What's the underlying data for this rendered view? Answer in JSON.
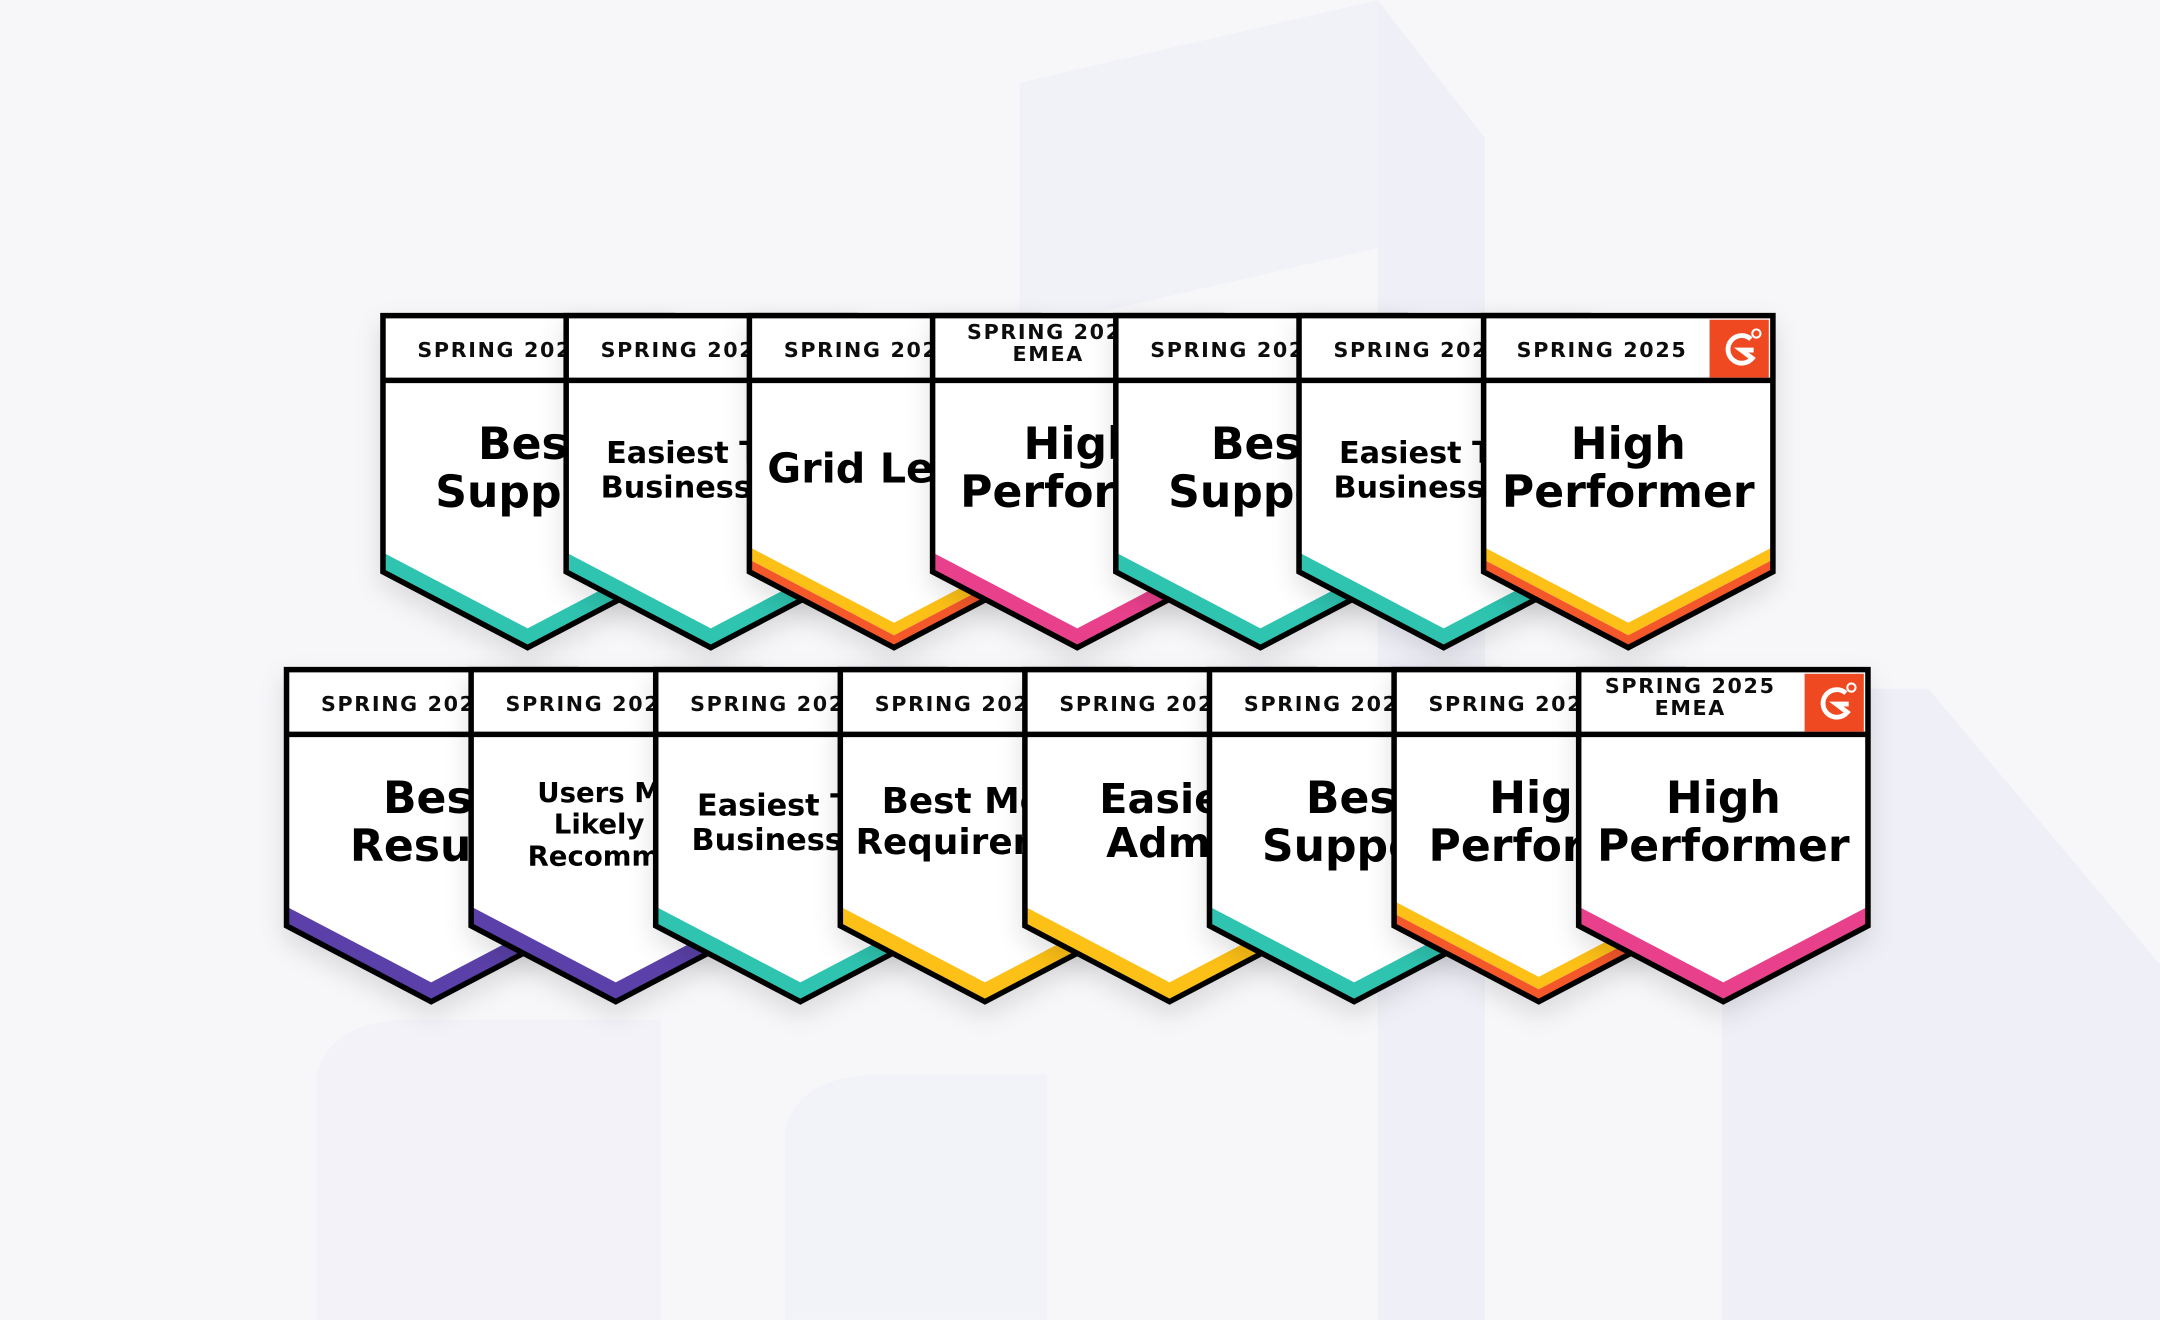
{
  "badges": [
    {
      "header": [
        "SPRING 202"
      ],
      "title": [
        "Best",
        "Suppo"
      ],
      "stripe": [
        "#2ec4b0"
      ]
    },
    {
      "header": [
        "SPRING 202"
      ],
      "title": [
        "Easiest T",
        "Business "
      ],
      "stripe": [
        "#2ec4b0"
      ]
    },
    {
      "header": [
        "SPRING 202"
      ],
      "title": [
        "Grid Lea"
      ],
      "stripe": [
        "#fdc015",
        "#f4582a"
      ]
    },
    {
      "header": [
        "SPRING 202",
        "EMEA"
      ],
      "title": [
        "High",
        "Perform"
      ],
      "stripe": [
        "#e8408b"
      ]
    },
    {
      "header": [
        "SPRING 202"
      ],
      "title": [
        "Best",
        "Suppo"
      ],
      "stripe": [
        "#2ec4b0"
      ]
    },
    {
      "header": [
        "SPRING 202"
      ],
      "title": [
        "Easiest T",
        "Business "
      ],
      "stripe": [
        "#2ec4b0"
      ]
    },
    {
      "header": [
        "SPRING 2025"
      ],
      "title": [
        "High",
        "Performer"
      ],
      "stripe": [
        "#fdc015",
        "#f4582a"
      ],
      "logo": true
    },
    {
      "header": [
        "SPRING 202"
      ],
      "title": [
        "Best",
        "Resul"
      ],
      "stripe": [
        "#5a3fa8"
      ]
    },
    {
      "header": [
        "SPRING 202"
      ],
      "title": [
        "Users M",
        "Likely T",
        "Recomm"
      ],
      "stripe": [
        "#5a3fa8"
      ]
    },
    {
      "header": [
        "SPRING 202"
      ],
      "title": [
        "Easiest T",
        "Business "
      ],
      "stripe": [
        "#2ec4b0"
      ]
    },
    {
      "header": [
        "SPRING 202"
      ],
      "title": [
        "Best Me",
        "Requirem"
      ],
      "stripe": [
        "#fdc015"
      ]
    },
    {
      "header": [
        "SPRING 202"
      ],
      "title": [
        "Easie",
        "Admi"
      ],
      "stripe": [
        "#fdc015"
      ]
    },
    {
      "header": [
        "SPRING 202"
      ],
      "title": [
        "Best",
        "Suppo"
      ],
      "stripe": [
        "#2ec4b0"
      ]
    },
    {
      "header": [
        "SPRING 202"
      ],
      "title": [
        "High",
        "Perform"
      ],
      "stripe": [
        "#fdc015",
        "#f4582a"
      ]
    },
    {
      "header": [
        "SPRING 2025",
        "EMEA"
      ],
      "title": [
        "High",
        "Performer"
      ],
      "stripe": [
        "#e8408b"
      ],
      "logo": true
    }
  ]
}
